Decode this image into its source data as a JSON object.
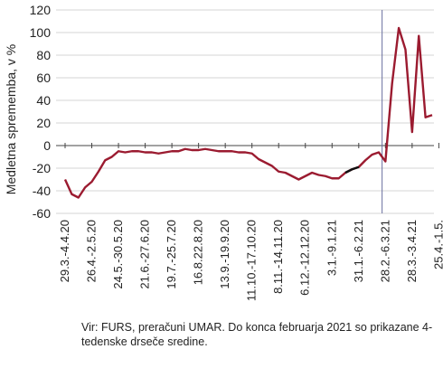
{
  "chart_data": {
    "type": "line",
    "ylabel": "Medletna sprememba, v %",
    "ylim": [
      -60,
      120
    ],
    "yticks": [
      120,
      100,
      80,
      60,
      40,
      20,
      0,
      -20,
      -40,
      -60
    ],
    "x_tick_labels": [
      "29.3.-4.4.20",
      "26.4.-2.5.20",
      "24.5.-30.5.20",
      "21.6.-27.6.20",
      "19.7.-25.7.20",
      "16.8.22.8.20",
      "13.9.-19.9.20",
      "11.10.-17.10.20",
      "8.11.-14.11.20",
      "6.12.-12.12.20",
      "3.1.-9.1.21",
      "31.1.-6.2.21",
      "28.2.-6.3.21",
      "28.3.-3.4.21",
      "25.4.-1.5."
    ],
    "marker_week": "28.2.-6.3.21",
    "series": [
      {
        "color": "#9b1b30",
        "values": [
          -30,
          -43,
          -46,
          -37,
          -32,
          -23,
          -13,
          -10,
          -5,
          -6,
          -5,
          -5,
          -6,
          -6,
          -7,
          -6,
          -5,
          -5,
          -3,
          -4,
          -4,
          -3,
          -4,
          -5,
          -5,
          -5,
          -6,
          -6,
          -7,
          -12,
          -15,
          -18,
          -23,
          -24,
          -27,
          -30,
          -27,
          -24,
          -26,
          -27,
          -29,
          -29,
          -24,
          -21,
          -19,
          -13,
          -8,
          -6,
          -14,
          55,
          104,
          85,
          12,
          97,
          25,
          27
        ]
      }
    ],
    "black_segment": {
      "from_index": 42,
      "to_index": 44
    }
  },
  "source_text": "Vir: FURS, preračuni UMAR. Do konca februarja 2021 so prikazane 4-tedenske drseče sredine."
}
